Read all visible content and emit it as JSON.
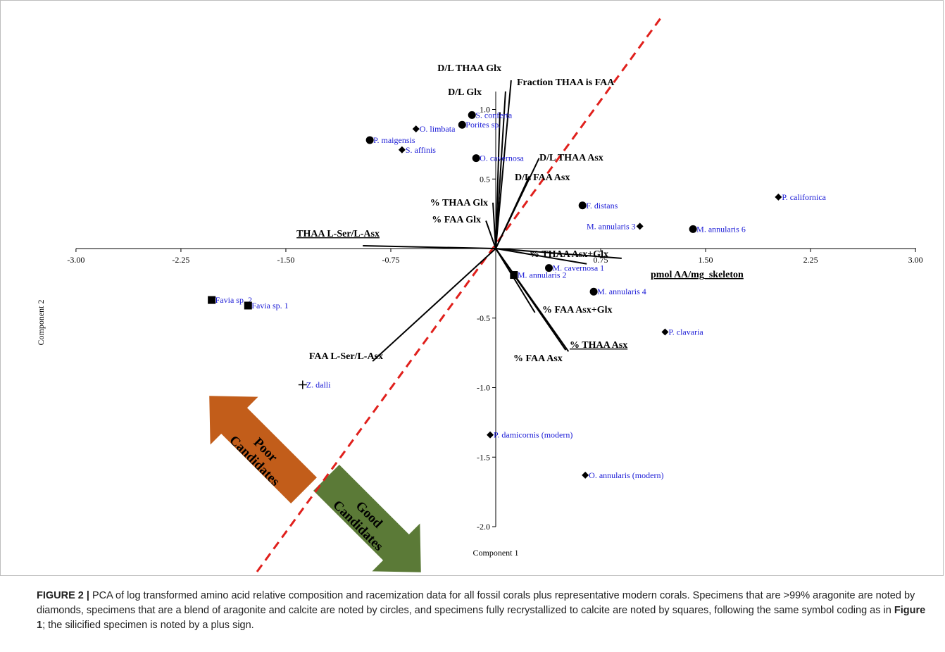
{
  "chart_data": {
    "type": "scatter",
    "title": "",
    "xlabel": "Component 1",
    "ylabel": "Component 2",
    "xlim": [
      -3.0,
      3.0
    ],
    "ylim": [
      -2.0,
      1.25
    ],
    "x_ticks": [
      "-3.00",
      "-2.25",
      "-1.50",
      "-0.75",
      "0.75",
      "1.50",
      "2.25",
      "3.00"
    ],
    "x_tick_values": [
      -3.0,
      -2.25,
      -1.5,
      -0.75,
      0.75,
      1.5,
      2.25,
      3.0
    ],
    "y_ticks": [
      "1.0",
      "0.5",
      "-0.5",
      "-1.0",
      "-1.5",
      "-2.0"
    ],
    "y_tick_values": [
      1.0,
      0.5,
      -0.5,
      -1.0,
      -1.5,
      -2.0
    ],
    "points": [
      {
        "label": "S. conferta",
        "x": -0.17,
        "y": 0.96,
        "marker": "circle"
      },
      {
        "label": "Porites sp.",
        "x": -0.24,
        "y": 0.89,
        "marker": "circle"
      },
      {
        "label": "O. limbata",
        "x": -0.57,
        "y": 0.86,
        "marker": "diamond"
      },
      {
        "label": "P. maigensis",
        "x": -0.9,
        "y": 0.78,
        "marker": "circle"
      },
      {
        "label": "S. affinis",
        "x": -0.67,
        "y": 0.71,
        "marker": "diamond"
      },
      {
        "label": "O. cavernosa",
        "x": -0.14,
        "y": 0.65,
        "marker": "circle"
      },
      {
        "label": "P. californica",
        "x": 2.02,
        "y": 0.37,
        "marker": "diamond"
      },
      {
        "label": "F. distans",
        "x": 0.62,
        "y": 0.31,
        "marker": "circle"
      },
      {
        "label": "M. annularis 3",
        "x": 1.03,
        "y": 0.16,
        "marker": "diamond"
      },
      {
        "label": "M. annularis 6",
        "x": 1.41,
        "y": 0.14,
        "marker": "circle"
      },
      {
        "label": "M. cavernosa 1",
        "x": 0.38,
        "y": -0.14,
        "marker": "circle"
      },
      {
        "label": "M. annularis 2",
        "x": 0.13,
        "y": -0.19,
        "marker": "square"
      },
      {
        "label": "M. annularis 4",
        "x": 0.7,
        "y": -0.31,
        "marker": "circle"
      },
      {
        "label": "Favia sp. 2",
        "x": -2.03,
        "y": -0.37,
        "marker": "square"
      },
      {
        "label": "Favia sp. 1",
        "x": -1.77,
        "y": -0.41,
        "marker": "square"
      },
      {
        "label": "P. clavaria",
        "x": 1.21,
        "y": -0.6,
        "marker": "diamond"
      },
      {
        "label": "Z. dalli",
        "x": -1.38,
        "y": -0.98,
        "marker": "plus"
      },
      {
        "label": "P. damicornis (modern)",
        "x": -0.04,
        "y": -1.34,
        "marker": "diamond"
      },
      {
        "label": "O. annularis (modern)",
        "x": 0.64,
        "y": -1.63,
        "marker": "diamond"
      }
    ],
    "vectors": [
      {
        "label": "D/L THAA Glx",
        "x": 0.07,
        "y": 1.13
      },
      {
        "label": "Fraction THAA is FAA",
        "x": 0.11,
        "y": 1.21
      },
      {
        "label": "D/L Glx",
        "x": 0.03,
        "y": 0.98
      },
      {
        "label": "D/L THAA Asx",
        "x": 0.31,
        "y": 0.65
      },
      {
        "label": "D/L FAA Asx",
        "x": 0.24,
        "y": 0.52
      },
      {
        "label": "% THAA Glx",
        "x": -0.02,
        "y": 0.33
      },
      {
        "label": "% FAA Glx",
        "x": -0.07,
        "y": 0.2
      },
      {
        "label": "THAA L-Ser/L-Asx",
        "x": -0.95,
        "y": 0.02
      },
      {
        "label": "% THAA Asx+Glx",
        "x": 0.9,
        "y": -0.07
      },
      {
        "label": "pmol AA/mg_skeleton",
        "x": 0.65,
        "y": -0.11
      },
      {
        "label": "% FAA Asx+Glx",
        "x": 0.28,
        "y": -0.46
      },
      {
        "label": "% THAA Asx",
        "x": 0.52,
        "y": -0.74
      },
      {
        "label": "% FAA Asx",
        "x": 0.5,
        "y": -0.73
      },
      {
        "label": "FAA L-Ser/L-Asx",
        "x": -0.88,
        "y": -0.81
      }
    ],
    "underlined_vectors": [
      "THAA L-Ser/L-Asx",
      "pmol AA/mg_skeleton",
      "% THAA Asx"
    ],
    "annotations": {
      "poor": "Poor Candidates",
      "good": "Good Candidates",
      "poor_color": "#c25d1a",
      "good_color": "#5b7a37",
      "divider_color": "#e0201c"
    },
    "point_label_color": "#1a1ad6",
    "grid": false
  },
  "caption": {
    "label": "FIGURE 2 |",
    "text_before": " PCA of log transformed amino acid relative composition and racemization data for all fossil corals plus representative modern corals. Specimens that are >99% aragonite are noted by diamonds, specimens that are a blend of aragonite and calcite are noted by circles, and specimens fully recrystallized to calcite are noted by squares, following the same symbol coding as in ",
    "ref": "Figure 1",
    "text_after": "; the silicified specimen is noted by a plus sign."
  }
}
